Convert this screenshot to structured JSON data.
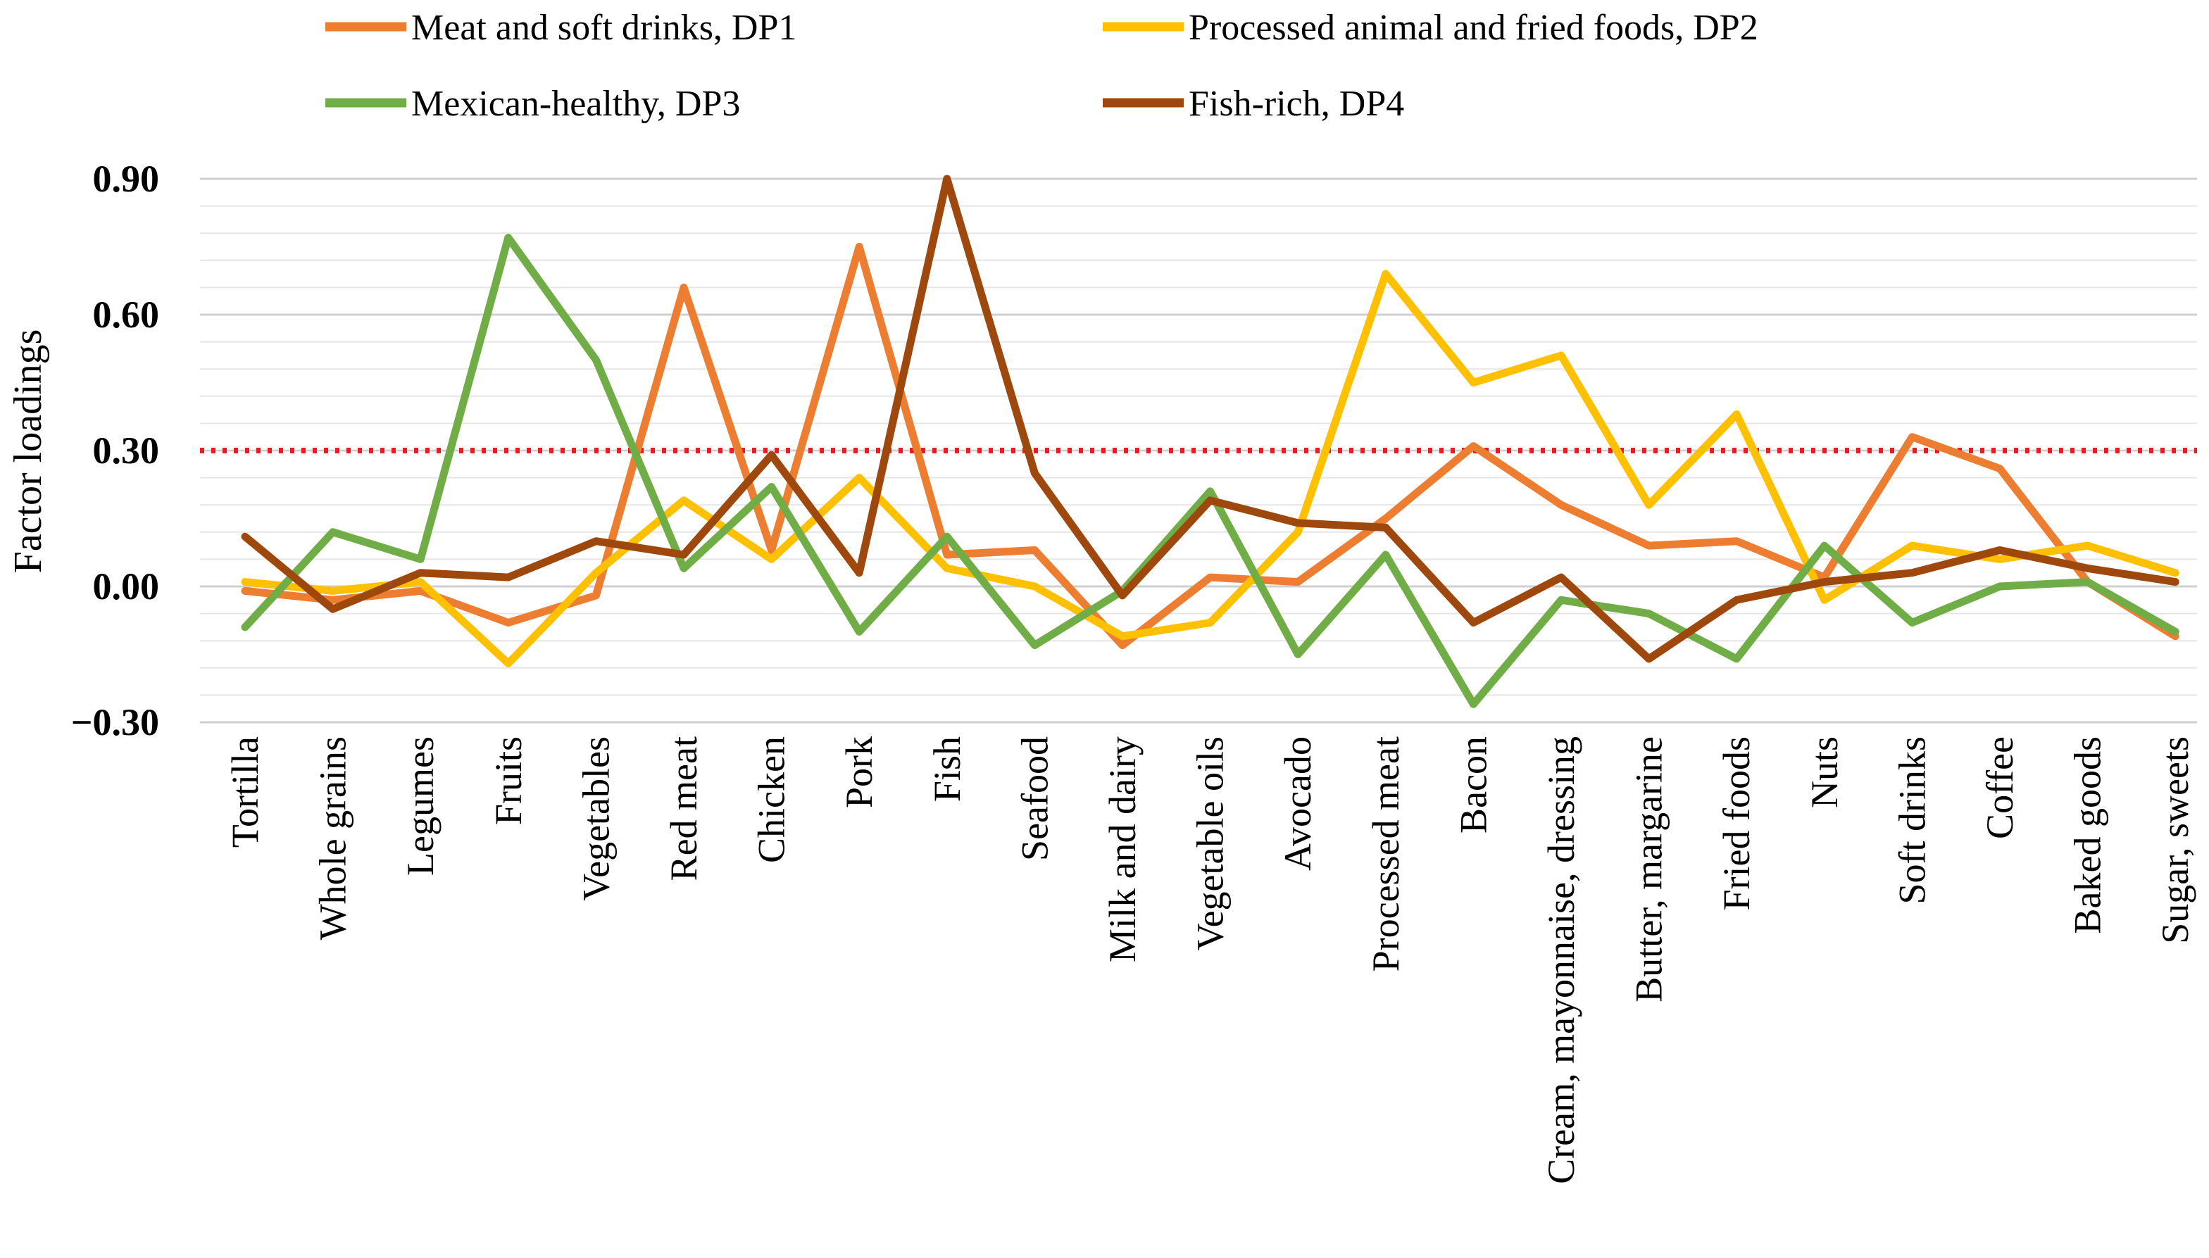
{
  "chart_data": {
    "type": "line",
    "title": "",
    "xlabel": "",
    "ylabel": "Factor loadings",
    "ylim": [
      -0.3,
      0.9
    ],
    "yticks": [
      -0.3,
      0.0,
      0.3,
      0.6,
      0.9
    ],
    "ytick_labels": [
      "−0.30",
      "0.00",
      "0.30",
      "0.60",
      "0.90"
    ],
    "minor_grid_step": 0.06,
    "grid": true,
    "legend_position": "top",
    "threshold": {
      "value": 0.3,
      "color": "#E02020",
      "style": "dotted"
    },
    "categories": [
      "Tortilla",
      "Whole grains",
      "Legumes",
      "Fruits",
      "Vegetables",
      "Red meat",
      "Chicken",
      "Pork",
      "Fish",
      "Seafood",
      "Milk and dairy",
      "Vegetable oils",
      "Avocado",
      "Processed meat",
      "Bacon",
      "Cream, mayonnaise, dressing",
      "Butter, margarine",
      "Fried foods",
      "Nuts",
      "Soft drinks",
      "Coffee",
      "Baked goods",
      "Sugar, sweets"
    ],
    "series": [
      {
        "name": "Meat and soft drinks, DP1",
        "color": "#ED7D31",
        "values": [
          -0.01,
          -0.03,
          -0.01,
          -0.08,
          -0.02,
          0.66,
          0.08,
          0.75,
          0.07,
          0.08,
          -0.13,
          0.02,
          0.01,
          0.15,
          0.31,
          0.18,
          0.09,
          0.1,
          0.02,
          0.33,
          0.26,
          0.01,
          -0.11
        ]
      },
      {
        "name": "Processed animal and fried foods, DP2",
        "color": "#FFC000",
        "values": [
          0.01,
          -0.01,
          0.01,
          -0.17,
          0.03,
          0.19,
          0.06,
          0.24,
          0.04,
          0.0,
          -0.11,
          -0.08,
          0.12,
          0.69,
          0.45,
          0.51,
          0.18,
          0.38,
          -0.03,
          0.09,
          0.06,
          0.09,
          0.03
        ]
      },
      {
        "name": "Mexican-healthy, DP3",
        "color": "#70AD47",
        "values": [
          -0.09,
          0.12,
          0.06,
          0.77,
          0.5,
          0.04,
          0.22,
          -0.1,
          0.11,
          -0.13,
          -0.01,
          0.21,
          -0.15,
          0.07,
          -0.26,
          -0.03,
          -0.06,
          -0.16,
          0.09,
          -0.08,
          0.0,
          0.01,
          -0.1
        ]
      },
      {
        "name": "Fish-rich, DP4",
        "color": "#9E480E",
        "values": [
          0.11,
          -0.05,
          0.03,
          0.02,
          0.1,
          0.07,
          0.29,
          0.03,
          0.9,
          0.25,
          -0.02,
          0.19,
          0.14,
          0.13,
          -0.08,
          0.02,
          -0.16,
          -0.03,
          0.01,
          0.03,
          0.08,
          0.04,
          0.01
        ]
      }
    ]
  }
}
